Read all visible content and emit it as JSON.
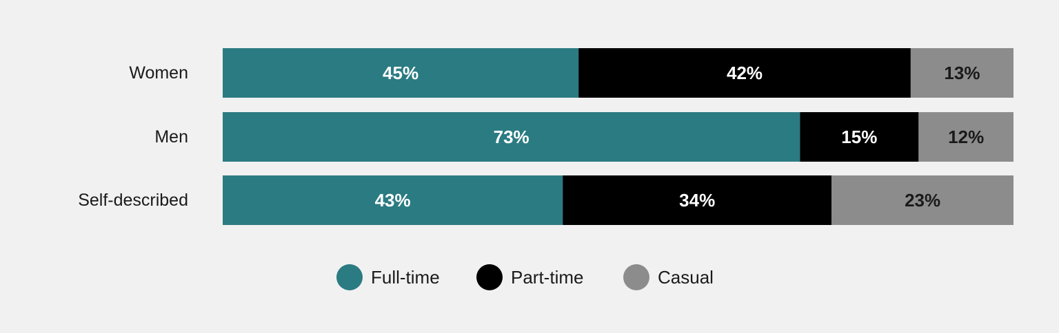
{
  "chart_data": {
    "type": "bar",
    "orientation": "horizontal",
    "stacked": true,
    "categories": [
      "Women",
      "Men",
      "Self-described"
    ],
    "series": [
      {
        "name": "Full-time",
        "color": "#2b7b82",
        "label_color": "#ffffff",
        "values": [
          45,
          73,
          43
        ]
      },
      {
        "name": "Part-time",
        "color": "#000000",
        "label_color": "#ffffff",
        "values": [
          42,
          15,
          34
        ]
      },
      {
        "name": "Casual",
        "color": "#8c8c8c",
        "label_color": "#1a1a1a",
        "values": [
          13,
          12,
          23
        ]
      }
    ],
    "value_suffix": "%",
    "xlim": [
      0,
      100
    ],
    "grid": false,
    "legend_position": "bottom-center",
    "title": "",
    "xlabel": "",
    "ylabel": ""
  }
}
